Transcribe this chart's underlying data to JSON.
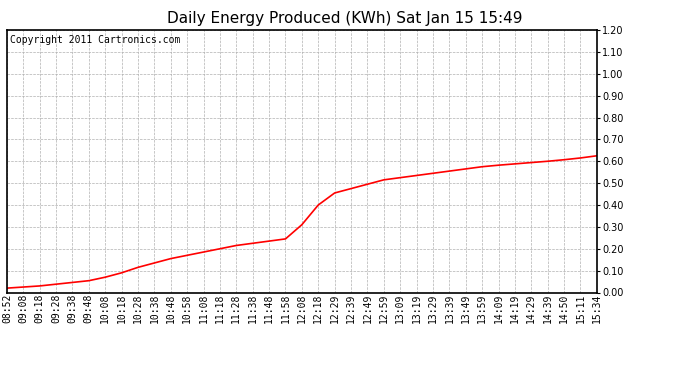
{
  "title": "Daily Energy Produced (KWh) Sat Jan 15 15:49",
  "copyright_text": "Copyright 2011 Cartronics.com",
  "line_color": "#ff0000",
  "background_color": "#ffffff",
  "plot_background": "#ffffff",
  "grid_color": "#b0b0b0",
  "ylim": [
    0.0,
    1.2
  ],
  "yticks": [
    0.0,
    0.1,
    0.2,
    0.3,
    0.4,
    0.5,
    0.6,
    0.7,
    0.8,
    0.9,
    1.0,
    1.1,
    1.2
  ],
  "xtick_labels": [
    "08:52",
    "09:08",
    "09:18",
    "09:28",
    "09:38",
    "09:48",
    "10:08",
    "10:18",
    "10:28",
    "10:38",
    "10:48",
    "10:58",
    "11:08",
    "11:18",
    "11:28",
    "11:38",
    "11:48",
    "11:58",
    "12:08",
    "12:18",
    "12:29",
    "12:39",
    "12:49",
    "12:59",
    "13:09",
    "13:19",
    "13:29",
    "13:39",
    "13:49",
    "13:59",
    "14:09",
    "14:19",
    "14:29",
    "14:39",
    "14:50",
    "15:11",
    "15:34"
  ],
  "y_values": [
    0.02,
    0.025,
    0.03,
    0.038,
    0.046,
    0.054,
    0.07,
    0.09,
    0.115,
    0.135,
    0.155,
    0.17,
    0.185,
    0.2,
    0.215,
    0.225,
    0.235,
    0.245,
    0.31,
    0.4,
    0.455,
    0.475,
    0.495,
    0.515,
    0.525,
    0.535,
    0.545,
    0.555,
    0.565,
    0.575,
    0.582,
    0.588,
    0.594,
    0.6,
    0.607,
    0.615,
    0.625
  ],
  "title_fontsize": 11,
  "copyright_fontsize": 7,
  "tick_fontsize": 7,
  "line_width": 1.2
}
